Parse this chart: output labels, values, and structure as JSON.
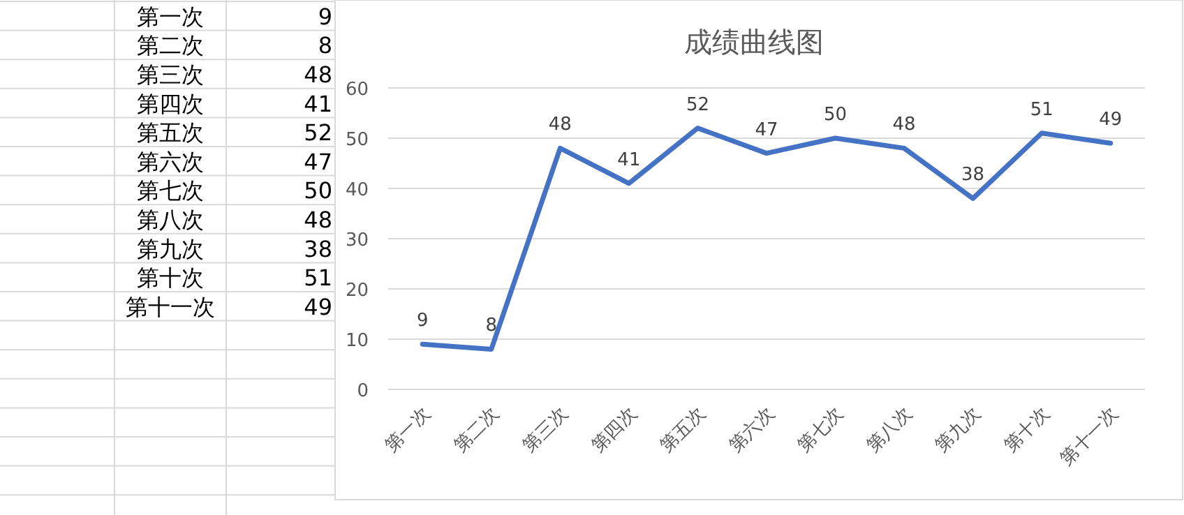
{
  "chart_data": [
    {
      "type": "other",
      "categories": [
        "第一次",
        "第二次",
        "第三次",
        "第四次",
        "第五次",
        "第六次",
        "第七次",
        "第八次",
        "第九次",
        "第十次",
        "第十一次"
      ],
      "values": [
        9,
        8,
        48,
        41,
        52,
        47,
        50,
        48,
        38,
        51,
        49
      ],
      "data_labels": true
    },
    {
      "type": "line",
      "title": "成绩曲线图",
      "categories": [
        "第一次",
        "第二次",
        "第三次",
        "第四次",
        "第五次",
        "第六次",
        "第七次",
        "第八次",
        "第九次",
        "第十次",
        "第十一次"
      ],
      "series": [
        {
          "color": "#4472c4",
          "values": [
            9,
            8,
            48,
            41,
            52,
            47,
            50,
            48,
            38,
            51,
            49
          ]
        }
      ],
      "ylim": [
        0,
        60
      ],
      "yticks": [
        0,
        10,
        20,
        30,
        40,
        50,
        60
      ],
      "grid": "y",
      "data_labels": true,
      "marker": "none",
      "line_style": "solid"
    }
  ]
}
